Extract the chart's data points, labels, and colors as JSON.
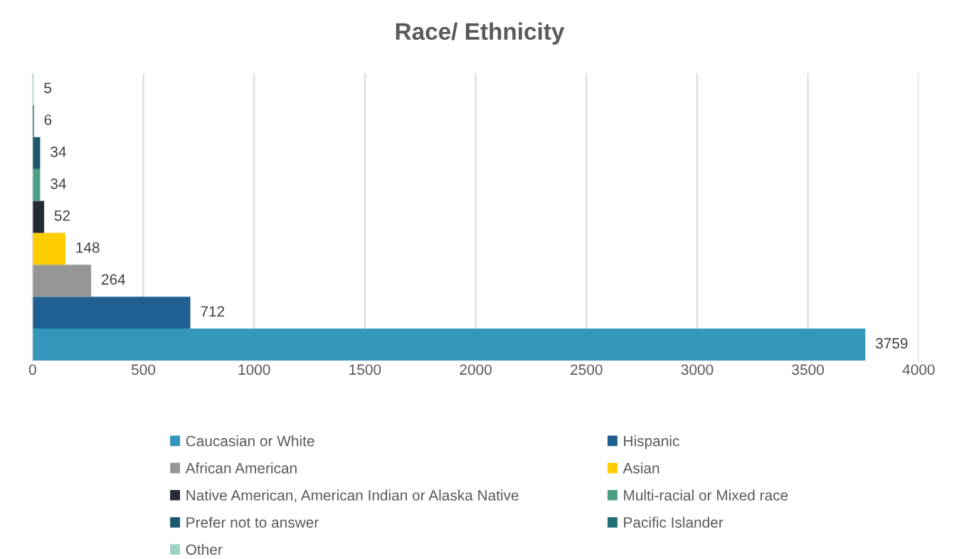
{
  "chart_data": {
    "type": "bar",
    "orientation": "horizontal",
    "title": "Race/ Ethnicity",
    "categories": [
      null
    ],
    "series": [
      {
        "name": "Caucasian or White",
        "color": "#3596bc",
        "values": [
          3759
        ]
      },
      {
        "name": "Hispanic",
        "color": "#1f5f92",
        "values": [
          712
        ]
      },
      {
        "name": "African American",
        "color": "#969696",
        "values": [
          264
        ]
      },
      {
        "name": "Asian",
        "color": "#ffcc00",
        "values": [
          148
        ]
      },
      {
        "name": "Native American, American Indian or Alaska Native",
        "color": "#262a36",
        "values": [
          52
        ]
      },
      {
        "name": "Multi-racial or Mixed race",
        "color": "#4a9e86",
        "values": [
          34
        ]
      },
      {
        "name": "Prefer not to answer",
        "color": "#1b5a6e",
        "values": [
          34
        ]
      },
      {
        "name": "Pacific Islander",
        "color": "#1e6e76",
        "values": [
          6
        ]
      },
      {
        "name": "Other",
        "color": "#9dd4c5",
        "values": [
          5
        ]
      }
    ],
    "xlim": [
      0,
      4000
    ],
    "xticks": [
      0,
      500,
      1000,
      1500,
      2000,
      2500,
      3000,
      3500,
      4000
    ],
    "grid": "x",
    "legend": "bottom",
    "data_labels": true
  }
}
